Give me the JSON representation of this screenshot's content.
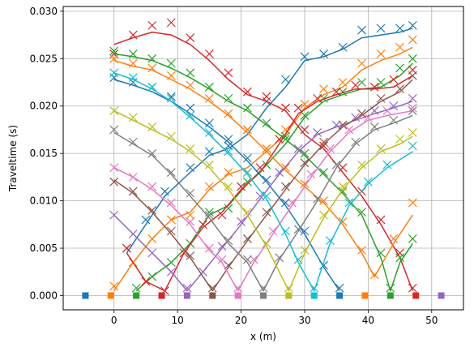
{
  "chart_data": {
    "type": "line",
    "xlabel": "x (m)",
    "ylabel": "Traveltime (s)",
    "xlim": [
      -8,
      55
    ],
    "ylim": [
      -0.0015,
      0.0305
    ],
    "xticks": [
      0,
      10,
      20,
      30,
      40,
      50
    ],
    "xtick_labels": [
      "0",
      "10",
      "20",
      "30",
      "40",
      "50"
    ],
    "yticks": [
      0.0,
      0.005,
      0.01,
      0.015,
      0.02,
      0.025,
      0.03
    ],
    "ytick_labels": [
      "0.000",
      "0.005",
      "0.010",
      "0.015",
      "0.020",
      "0.025",
      "0.030"
    ],
    "grid": true,
    "legend": "none",
    "marker_cross": "x",
    "marker_square": "s",
    "sources": [
      {
        "x": -4.5,
        "color": "#1f77b4"
      },
      {
        "x": -0.5,
        "color": "#ff7f0e"
      },
      {
        "x": 3.5,
        "color": "#2ca02c"
      },
      {
        "x": 7.5,
        "color": "#d62728"
      },
      {
        "x": 11.5,
        "color": "#9467bd"
      },
      {
        "x": 15.5,
        "color": "#8c564b"
      },
      {
        "x": 19.5,
        "color": "#e377c2"
      },
      {
        "x": 23.5,
        "color": "#7f7f7f"
      },
      {
        "x": 27.5,
        "color": "#bcbd22"
      },
      {
        "x": 31.5,
        "color": "#17becf"
      },
      {
        "x": 35.5,
        "color": "#1f77b4"
      },
      {
        "x": 39.5,
        "color": "#ff7f0e"
      },
      {
        "x": 43.5,
        "color": "#2ca02c"
      },
      {
        "x": 47.5,
        "color": "#d62728"
      },
      {
        "x": 51.5,
        "color": "#9467bd"
      }
    ],
    "series": [
      {
        "color": "#1f77b4",
        "x": [
          2,
          5,
          8,
          12,
          15,
          18,
          21,
          24,
          27,
          30,
          33,
          36,
          39,
          42,
          45,
          47
        ],
        "y": [
          0.0045,
          0.0075,
          0.0105,
          0.013,
          0.0148,
          0.0155,
          0.017,
          0.0198,
          0.022,
          0.0248,
          0.0252,
          0.026,
          0.0272,
          0.0275,
          0.0278,
          0.0282
        ],
        "markers_y": [
          0.005,
          0.008,
          0.011,
          0.0135,
          0.0152,
          0.0158,
          0.0175,
          0.0205,
          0.0228,
          0.0252,
          0.0255,
          0.0262,
          0.028,
          0.0282,
          0.0282,
          0.0285
        ]
      },
      {
        "color": "#ff7f0e",
        "x": [
          0,
          3,
          6,
          9,
          12,
          15,
          18,
          21,
          24,
          27,
          30,
          33,
          36,
          39,
          42,
          45,
          47
        ],
        "y": [
          0.0005,
          0.0035,
          0.006,
          0.008,
          0.0088,
          0.0112,
          0.0128,
          0.0135,
          0.0152,
          0.017,
          0.0198,
          0.0212,
          0.022,
          0.0238,
          0.0248,
          0.0255,
          0.0262
        ],
        "markers_y": [
          0.001,
          0.0035,
          0.006,
          0.008,
          0.0085,
          0.0115,
          0.013,
          0.013,
          0.0155,
          0.0175,
          0.0202,
          0.0218,
          0.0225,
          0.0245,
          0.0255,
          0.0262,
          0.027
        ]
      },
      {
        "color": "#2ca02c",
        "x": [
          3.5,
          6,
          9,
          12,
          15,
          18,
          21,
          24,
          27,
          30,
          33,
          36,
          39,
          42,
          45,
          47
        ],
        "y": [
          0.0005,
          0.002,
          0.0035,
          0.0055,
          0.0085,
          0.0095,
          0.0118,
          0.0138,
          0.016,
          0.0188,
          0.0205,
          0.0212,
          0.0218,
          0.022,
          0.0232,
          0.0245
        ],
        "markers_y": [
          0.0008,
          0.002,
          0.0035,
          0.0055,
          0.0088,
          0.0092,
          0.012,
          0.0138,
          0.0165,
          0.019,
          0.0208,
          0.0215,
          0.0225,
          0.0225,
          0.024,
          0.025
        ]
      },
      {
        "color": "#d62728",
        "x": [
          2,
          5,
          8,
          11,
          14,
          17,
          20,
          23,
          26,
          29,
          32,
          35,
          38,
          41,
          44,
          47
        ],
        "y": [
          0.0045,
          0.0015,
          0.0005,
          0.0045,
          0.0072,
          0.0088,
          0.0112,
          0.013,
          0.016,
          0.0192,
          0.0205,
          0.0212,
          0.0218,
          0.0218,
          0.022,
          0.0232
        ],
        "markers_y": [
          0.005,
          0.0015,
          0.0005,
          0.0045,
          0.0075,
          0.0085,
          0.0115,
          0.0135,
          0.0165,
          0.0198,
          0.0208,
          0.0215,
          0.0222,
          0.022,
          0.0228,
          0.0238
        ]
      },
      {
        "color": "#d62728",
        "x": [
          0,
          3,
          6,
          9,
          12,
          15,
          18,
          21,
          24,
          27,
          30,
          33,
          36,
          39,
          42,
          45,
          47
        ],
        "y": [
          0.0265,
          0.0272,
          0.0278,
          0.0275,
          0.0265,
          0.0248,
          0.0228,
          0.0212,
          0.0205,
          0.0195,
          0.017,
          0.0155,
          0.013,
          0.0105,
          0.0075,
          0.004,
          0.0005
        ],
        "markers_y": [
          0.0255,
          0.0275,
          0.0285,
          0.0288,
          0.0272,
          0.0255,
          0.0235,
          0.0215,
          0.021,
          0.0198,
          0.0175,
          0.0158,
          0.0135,
          0.011,
          0.008,
          0.0045,
          0.0008
        ]
      },
      {
        "color": "#1f77b4",
        "x": [
          0,
          3,
          6,
          9,
          12,
          15,
          18,
          21,
          24,
          27,
          30,
          33,
          35.5
        ],
        "y": [
          0.0228,
          0.0222,
          0.0215,
          0.0205,
          0.0192,
          0.0178,
          0.0162,
          0.0142,
          0.012,
          0.0095,
          0.0065,
          0.003,
          0.0005
        ],
        "markers_y": [
          0.023,
          0.0225,
          0.022,
          0.021,
          0.0198,
          0.0182,
          0.0165,
          0.0145,
          0.0122,
          0.0098,
          0.0068,
          0.0032,
          0.0008
        ]
      },
      {
        "color": "#ff7f0e",
        "x": [
          0,
          3,
          6,
          9,
          12,
          15,
          18,
          21,
          24,
          27,
          30,
          33,
          36,
          39,
          41,
          44,
          47
        ],
        "y": [
          0.0248,
          0.0242,
          0.0238,
          0.0228,
          0.0218,
          0.0205,
          0.019,
          0.0172,
          0.0152,
          0.0132,
          0.0115,
          0.0098,
          0.0075,
          0.0045,
          0.002,
          0.0055,
          0.0085
        ],
        "markers_y": [
          0.025,
          0.0245,
          0.024,
          0.0232,
          0.0222,
          0.0208,
          0.0192,
          0.0175,
          0.0155,
          0.0135,
          0.0118,
          0.01,
          0.0078,
          0.0048,
          0.0022,
          0.006,
          0.0098
        ]
      },
      {
        "color": "#2ca02c",
        "x": [
          0,
          3,
          6,
          9,
          12,
          15,
          18,
          21,
          24,
          27,
          30,
          33,
          36,
          39,
          42,
          43.5,
          45,
          47
        ],
        "y": [
          0.0255,
          0.0252,
          0.0248,
          0.024,
          0.023,
          0.0218,
          0.0205,
          0.0195,
          0.018,
          0.0165,
          0.0148,
          0.0128,
          0.0108,
          0.0085,
          0.004,
          0.0005,
          0.0035,
          0.0055
        ],
        "markers_y": [
          0.0258,
          0.0255,
          0.025,
          0.0245,
          0.0235,
          0.022,
          0.0208,
          0.0198,
          0.0182,
          0.0168,
          0.015,
          0.013,
          0.011,
          0.0088,
          0.0045,
          0.0008,
          0.004,
          0.006
        ]
      },
      {
        "color": "#9467bd",
        "x": [
          0,
          3,
          6,
          9,
          11.5,
          14,
          17,
          20,
          23,
          26,
          29,
          32,
          35,
          38,
          41,
          44,
          47
        ],
        "y": [
          0.0085,
          0.0065,
          0.0045,
          0.0025,
          0.0005,
          0.0025,
          0.005,
          0.0075,
          0.0102,
          0.0128,
          0.0152,
          0.017,
          0.0178,
          0.0185,
          0.0192,
          0.0198,
          0.0205
        ],
        "markers_y": [
          0.0085,
          0.0065,
          0.0045,
          0.0025,
          0.0008,
          0.0025,
          0.0052,
          0.0078,
          0.0105,
          0.013,
          0.0155,
          0.0172,
          0.018,
          0.0188,
          0.0195,
          0.02,
          0.0208
        ]
      },
      {
        "color": "#8c564b",
        "x": [
          0,
          3,
          6,
          9,
          12,
          15.5,
          18,
          21,
          24,
          27,
          30,
          33,
          36,
          39,
          42,
          45,
          47
        ],
        "y": [
          0.0122,
          0.0108,
          0.0088,
          0.0065,
          0.004,
          0.0005,
          0.003,
          0.0058,
          0.0085,
          0.0112,
          0.0138,
          0.016,
          0.0178,
          0.019,
          0.0205,
          0.0215,
          0.0228
        ],
        "markers_y": [
          0.012,
          0.011,
          0.009,
          0.0068,
          0.0042,
          0.0008,
          0.0032,
          0.006,
          0.0088,
          0.0115,
          0.014,
          0.0162,
          0.018,
          0.0192,
          0.0208,
          0.0218,
          0.0232
        ]
      },
      {
        "color": "#e377c2",
        "x": [
          0,
          3,
          6,
          9,
          12,
          15,
          17,
          19.5,
          22,
          25,
          28,
          31,
          34,
          37,
          40,
          43,
          47
        ],
        "y": [
          0.0135,
          0.0125,
          0.0112,
          0.0095,
          0.0075,
          0.0048,
          0.0035,
          0.0005,
          0.0035,
          0.0065,
          0.0095,
          0.0125,
          0.0152,
          0.0172,
          0.0185,
          0.019,
          0.0195
        ],
        "markers_y": [
          0.0135,
          0.0125,
          0.0115,
          0.0098,
          0.0078,
          0.005,
          0.0038,
          0.0008,
          0.0038,
          0.0068,
          0.0098,
          0.0128,
          0.0155,
          0.0175,
          0.0188,
          0.0195,
          0.0198
        ]
      },
      {
        "color": "#7f7f7f",
        "x": [
          0,
          3,
          6,
          9,
          12,
          15,
          18,
          21,
          23.5,
          26,
          29,
          32,
          35,
          38,
          41,
          44,
          47
        ],
        "y": [
          0.0172,
          0.016,
          0.0148,
          0.0128,
          0.0105,
          0.0082,
          0.0055,
          0.0035,
          0.0005,
          0.0038,
          0.0068,
          0.01,
          0.0135,
          0.016,
          0.0175,
          0.0182,
          0.019
        ],
        "markers_y": [
          0.0175,
          0.0162,
          0.015,
          0.013,
          0.0108,
          0.0085,
          0.0058,
          0.0038,
          0.0008,
          0.004,
          0.007,
          0.0102,
          0.0138,
          0.0162,
          0.0178,
          0.0185,
          0.0195
        ]
      },
      {
        "color": "#bcbd22",
        "x": [
          0,
          3,
          6,
          9,
          12,
          15,
          18,
          21,
          24,
          27.5,
          30,
          33,
          36,
          39,
          42,
          45,
          47
        ],
        "y": [
          0.0195,
          0.0185,
          0.0175,
          0.0165,
          0.0152,
          0.0135,
          0.0112,
          0.0085,
          0.0052,
          0.0005,
          0.0045,
          0.0082,
          0.0112,
          0.0135,
          0.0152,
          0.016,
          0.0168
        ],
        "markers_y": [
          0.0195,
          0.0188,
          0.0178,
          0.0168,
          0.0155,
          0.0138,
          0.0115,
          0.0088,
          0.0055,
          0.0008,
          0.0048,
          0.0085,
          0.0115,
          0.0138,
          0.0155,
          0.0165,
          0.0172
        ]
      },
      {
        "color": "#17becf",
        "x": [
          0,
          3,
          6,
          9,
          12,
          15,
          18,
          21,
          24,
          27,
          29,
          31.5,
          34,
          37,
          40,
          43,
          47
        ],
        "y": [
          0.0235,
          0.0228,
          0.0218,
          0.0205,
          0.0188,
          0.017,
          0.015,
          0.0128,
          0.0102,
          0.0065,
          0.0035,
          0.0005,
          0.0055,
          0.0095,
          0.0118,
          0.0135,
          0.0152
        ],
        "markers_y": [
          0.0235,
          0.023,
          0.022,
          0.0208,
          0.019,
          0.0172,
          0.0152,
          0.013,
          0.0105,
          0.0068,
          0.0038,
          0.0008,
          0.0058,
          0.0098,
          0.012,
          0.0138,
          0.0158
        ]
      }
    ]
  }
}
